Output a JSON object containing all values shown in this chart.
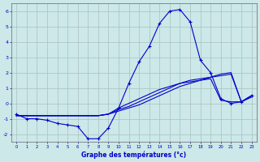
{
  "xlabel": "Graphe des températures (°c)",
  "background_color": "#cce8e8",
  "grid_color": "#aabfbf",
  "line_color": "#0000cc",
  "hours": [
    0,
    1,
    2,
    3,
    4,
    5,
    6,
    7,
    8,
    9,
    10,
    11,
    12,
    13,
    14,
    15,
    16,
    17,
    18,
    19,
    20,
    21,
    22,
    23
  ],
  "temp_main": [
    -0.7,
    -1.0,
    -1.0,
    -1.1,
    -1.3,
    -1.4,
    -1.5,
    -2.3,
    -2.3,
    -1.6,
    -0.3,
    1.3,
    2.7,
    3.7,
    5.2,
    6.0,
    6.1,
    5.3,
    2.8,
    2.0,
    0.3,
    0.0,
    0.1,
    0.5
  ],
  "temp_line1": [
    -0.8,
    -0.8,
    -0.8,
    -0.8,
    -0.8,
    -0.8,
    -0.8,
    -0.8,
    -0.8,
    -0.7,
    -0.5,
    -0.3,
    -0.1,
    0.2,
    0.5,
    0.8,
    1.1,
    1.3,
    1.5,
    1.7,
    1.9,
    2.0,
    0.1,
    0.5
  ],
  "temp_line2": [
    -0.8,
    -0.8,
    -0.8,
    -0.8,
    -0.8,
    -0.8,
    -0.8,
    -0.8,
    -0.8,
    -0.7,
    -0.4,
    -0.2,
    0.1,
    0.4,
    0.7,
    1.0,
    1.3,
    1.5,
    1.6,
    1.7,
    1.8,
    1.9,
    0.1,
    0.5
  ],
  "temp_line3": [
    -0.8,
    -0.8,
    -0.8,
    -0.8,
    -0.8,
    -0.8,
    -0.8,
    -0.8,
    -0.8,
    -0.7,
    -0.3,
    -0.0,
    0.3,
    0.6,
    0.9,
    1.1,
    1.3,
    1.4,
    1.5,
    1.6,
    0.2,
    0.1,
    0.1,
    0.4
  ],
  "ylim": [
    -2.5,
    6.5
  ],
  "xlim": [
    -0.5,
    23.5
  ]
}
